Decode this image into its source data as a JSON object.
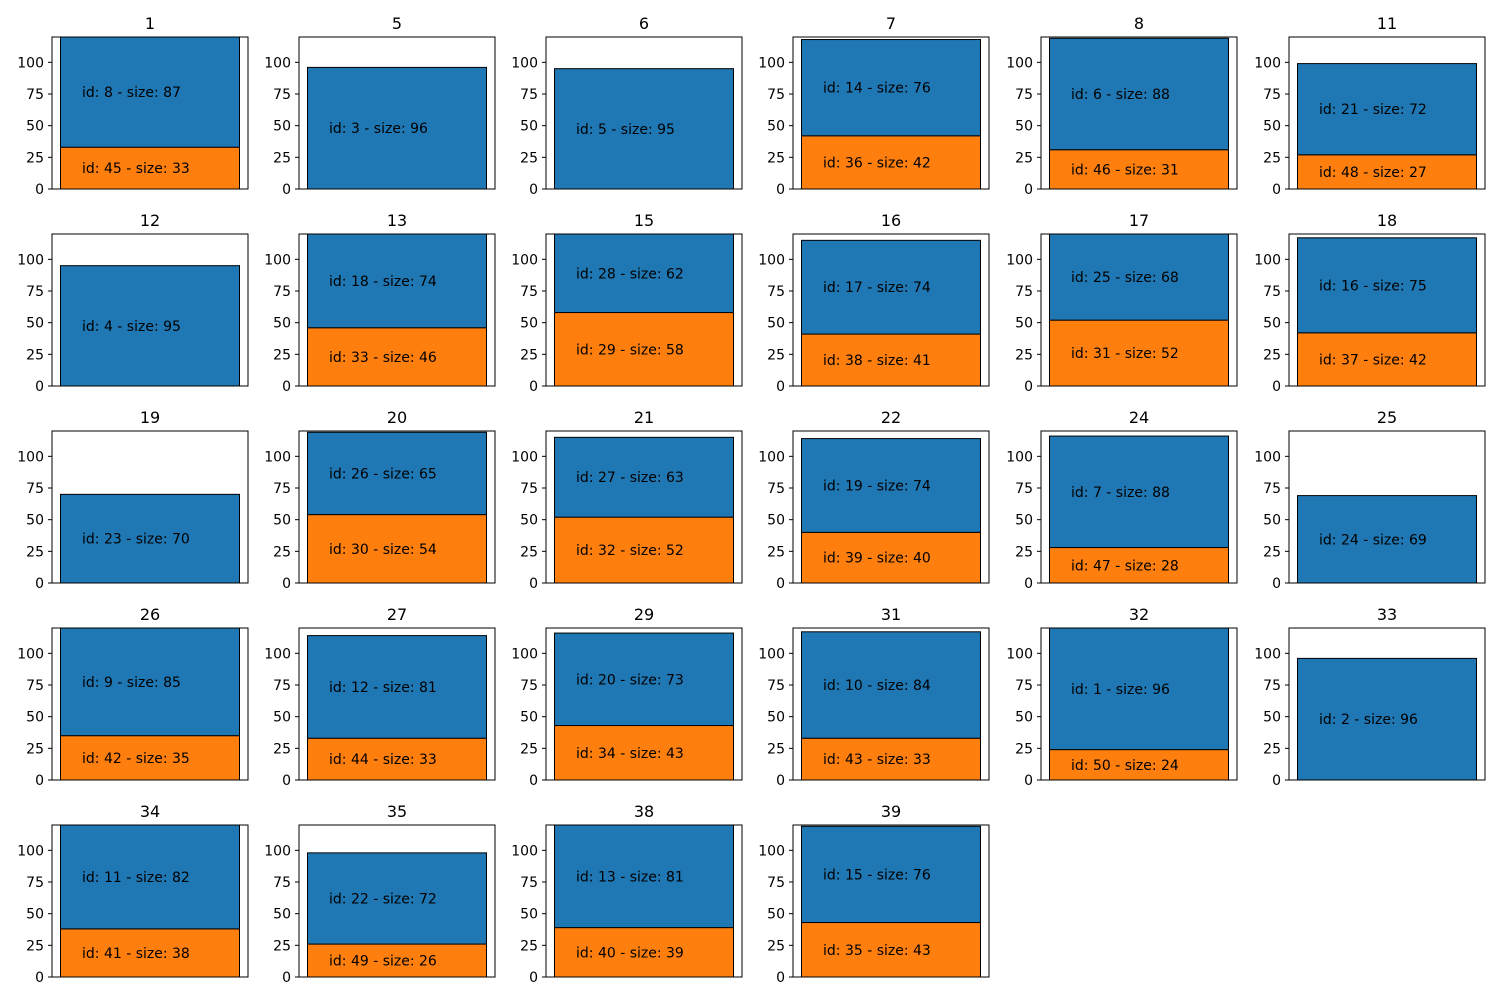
{
  "colors": {
    "bottom": "#ff7f0e",
    "top": "#1f77b4",
    "frame": "#000000",
    "background": "#ffffff"
  },
  "chart_data": {
    "type": "bar",
    "stacked": true,
    "grid": false,
    "layout": "small-multiples 5x6",
    "ylim": [
      0,
      120
    ],
    "yticks": [
      0,
      25,
      50,
      75,
      100
    ],
    "panels": [
      {
        "title": "1",
        "bottom": {
          "label": "id: 45 - size: 33",
          "value": 33
        },
        "top": {
          "label": "id: 8 - size: 87",
          "value": 87
        }
      },
      {
        "title": "5",
        "bottom": null,
        "top": {
          "label": "id: 3 - size: 96",
          "value": 96
        }
      },
      {
        "title": "6",
        "bottom": null,
        "top": {
          "label": "id: 5 - size: 95",
          "value": 95
        }
      },
      {
        "title": "7",
        "bottom": {
          "label": "id: 36 - size: 42",
          "value": 42
        },
        "top": {
          "label": "id: 14 - size: 76",
          "value": 76
        }
      },
      {
        "title": "8",
        "bottom": {
          "label": "id: 46 - size: 31",
          "value": 31
        },
        "top": {
          "label": "id: 6 - size: 88",
          "value": 88
        }
      },
      {
        "title": "11",
        "bottom": {
          "label": "id: 48 - size: 27",
          "value": 27
        },
        "top": {
          "label": "id: 21 - size: 72",
          "value": 72
        }
      },
      {
        "title": "12",
        "bottom": null,
        "top": {
          "label": "id: 4 - size: 95",
          "value": 95
        }
      },
      {
        "title": "13",
        "bottom": {
          "label": "id: 33 - size: 46",
          "value": 46
        },
        "top": {
          "label": "id: 18 - size: 74",
          "value": 74
        }
      },
      {
        "title": "15",
        "bottom": {
          "label": "id: 29 - size: 58",
          "value": 58
        },
        "top": {
          "label": "id: 28 - size: 62",
          "value": 62
        }
      },
      {
        "title": "16",
        "bottom": {
          "label": "id: 38 - size: 41",
          "value": 41
        },
        "top": {
          "label": "id: 17 - size: 74",
          "value": 74
        }
      },
      {
        "title": "17",
        "bottom": {
          "label": "id: 31 - size: 52",
          "value": 52
        },
        "top": {
          "label": "id: 25 - size: 68",
          "value": 68
        }
      },
      {
        "title": "18",
        "bottom": {
          "label": "id: 37 - size: 42",
          "value": 42
        },
        "top": {
          "label": "id: 16 - size: 75",
          "value": 75
        }
      },
      {
        "title": "19",
        "bottom": null,
        "top": {
          "label": "id: 23 - size: 70",
          "value": 70
        }
      },
      {
        "title": "20",
        "bottom": {
          "label": "id: 30 - size: 54",
          "value": 54
        },
        "top": {
          "label": "id: 26 - size: 65",
          "value": 65
        }
      },
      {
        "title": "21",
        "bottom": {
          "label": "id: 32 - size: 52",
          "value": 52
        },
        "top": {
          "label": "id: 27 - size: 63",
          "value": 63
        }
      },
      {
        "title": "22",
        "bottom": {
          "label": "id: 39 - size: 40",
          "value": 40
        },
        "top": {
          "label": "id: 19 - size: 74",
          "value": 74
        }
      },
      {
        "title": "24",
        "bottom": {
          "label": "id: 47 - size: 28",
          "value": 28
        },
        "top": {
          "label": "id: 7 - size: 88",
          "value": 88
        }
      },
      {
        "title": "25",
        "bottom": null,
        "top": {
          "label": "id: 24 - size: 69",
          "value": 69
        }
      },
      {
        "title": "26",
        "bottom": {
          "label": "id: 42 - size: 35",
          "value": 35
        },
        "top": {
          "label": "id: 9 - size: 85",
          "value": 85
        }
      },
      {
        "title": "27",
        "bottom": {
          "label": "id: 44 - size: 33",
          "value": 33
        },
        "top": {
          "label": "id: 12 - size: 81",
          "value": 81
        }
      },
      {
        "title": "29",
        "bottom": {
          "label": "id: 34 - size: 43",
          "value": 43
        },
        "top": {
          "label": "id: 20 - size: 73",
          "value": 73
        }
      },
      {
        "title": "31",
        "bottom": {
          "label": "id: 43 - size: 33",
          "value": 33
        },
        "top": {
          "label": "id: 10 - size: 84",
          "value": 84
        }
      },
      {
        "title": "32",
        "bottom": {
          "label": "id: 50 - size: 24",
          "value": 24
        },
        "top": {
          "label": "id: 1 - size: 96",
          "value": 96
        }
      },
      {
        "title": "33",
        "bottom": null,
        "top": {
          "label": "id: 2 - size: 96",
          "value": 96
        }
      },
      {
        "title": "34",
        "bottom": {
          "label": "id: 41 - size: 38",
          "value": 38
        },
        "top": {
          "label": "id: 11 - size: 82",
          "value": 82
        }
      },
      {
        "title": "35",
        "bottom": {
          "label": "id: 49 - size: 26",
          "value": 26
        },
        "top": {
          "label": "id: 22 - size: 72",
          "value": 72
        }
      },
      {
        "title": "38",
        "bottom": {
          "label": "id: 40 - size: 39",
          "value": 39
        },
        "top": {
          "label": "id: 13 - size: 81",
          "value": 81
        }
      },
      {
        "title": "39",
        "bottom": {
          "label": "id: 35 - size: 43",
          "value": 43
        },
        "top": {
          "label": "id: 15 - size: 76",
          "value": 76
        }
      }
    ]
  }
}
